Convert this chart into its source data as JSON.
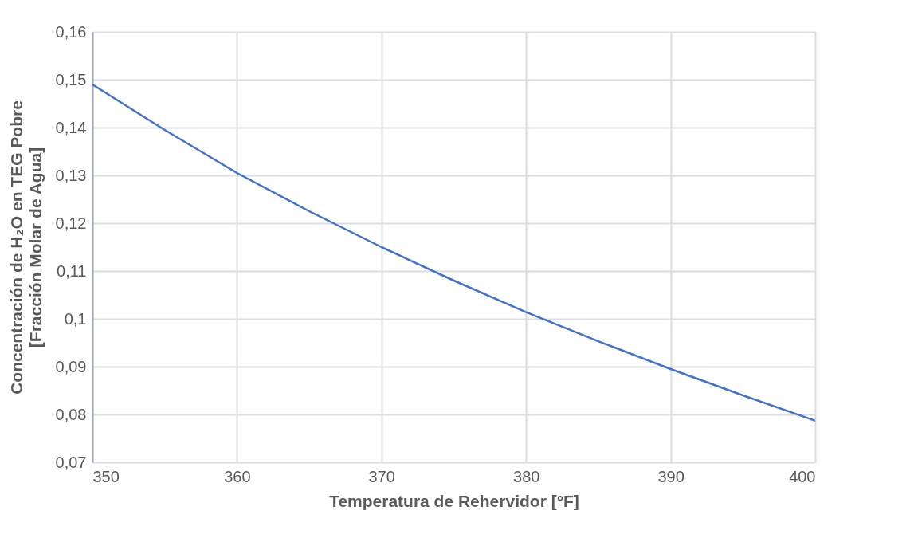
{
  "chart_data": {
    "type": "line",
    "xlabel": "Temperatura de Rehervidor [°F]",
    "ylabel": [
      "Concentración de H₂O en TEG Pobre",
      "[Fracción Molar de Agua]"
    ],
    "x": [
      350,
      355,
      360,
      365,
      370,
      375,
      380,
      385,
      390,
      395,
      400
    ],
    "series": [
      {
        "color": "#4472c4",
        "values": [
          0.149,
          0.1395,
          0.1305,
          0.1225,
          0.115,
          0.108,
          0.1014,
          0.0953,
          0.0895,
          0.084,
          0.0787
        ]
      }
    ],
    "xlim": [
      350,
      400
    ],
    "xticks": [
      350,
      360,
      370,
      380,
      390,
      400
    ],
    "ylim": [
      0.07,
      0.16
    ],
    "yticks": [
      {
        "value": 0.07,
        "label": "0,07"
      },
      {
        "value": 0.08,
        "label": "0,08"
      },
      {
        "value": 0.09,
        "label": "0,09"
      },
      {
        "value": 0.1,
        "label": "0,1"
      },
      {
        "value": 0.11,
        "label": "0,11"
      },
      {
        "value": 0.12,
        "label": "0,12"
      },
      {
        "value": 0.13,
        "label": "0,13"
      },
      {
        "value": 0.14,
        "label": "0,14"
      },
      {
        "value": 0.15,
        "label": "0,15"
      },
      {
        "value": 0.16,
        "label": "0,16"
      }
    ],
    "grid": true,
    "marker": "none",
    "line_style": "solid"
  }
}
